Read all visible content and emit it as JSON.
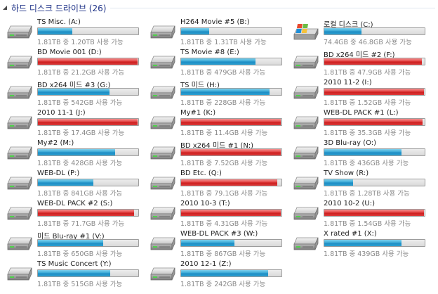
{
  "section": {
    "title": "하드 디스크 드라이브 (26)"
  },
  "drives": [
    {
      "name": "TS Misc. (A:)",
      "space": "1.81TB 중 1.20TB 사용 가능",
      "used": 0.34,
      "status": "normal",
      "icon": "hard-drive-icon"
    },
    {
      "name": "H264 Movie #5 (B:)",
      "space": "1.81TB 중 1.31TB 사용 가능",
      "used": 0.28,
      "status": "normal",
      "icon": "hard-drive-icon"
    },
    {
      "name": "로컬 디스크 (C:)",
      "space": "74.4GB 중 46.8GB 사용 가능",
      "used": 0.37,
      "status": "normal",
      "icon": "windows-drive-icon"
    },
    {
      "name": "BD Movie 001 (D:)",
      "space": "1.81TB 중 21.2GB 사용 가능",
      "used": 0.99,
      "status": "full",
      "icon": "hard-drive-icon"
    },
    {
      "name": "TS Movie #8 (E:)",
      "space": "1.81TB 중 479GB 사용 가능",
      "used": 0.74,
      "status": "normal",
      "icon": "hard-drive-icon"
    },
    {
      "name": "BD x264 미드 #2 (F:)",
      "space": "1.81TB 중 47.9GB 사용 가능",
      "used": 0.97,
      "status": "full",
      "icon": "hard-drive-icon"
    },
    {
      "name": "BD x264 미드 #3 (G:)",
      "space": "1.81TB 중 542GB 사용 가능",
      "used": 0.71,
      "status": "normal",
      "icon": "hard-drive-icon"
    },
    {
      "name": "TS 미드 (H:)",
      "space": "1.81TB 중 228GB 사용 가능",
      "used": 0.88,
      "status": "normal",
      "icon": "hard-drive-icon"
    },
    {
      "name": "2010 11-2 (I:)",
      "space": "1.81TB 중 1.52GB 사용 가능",
      "used": 0.99,
      "status": "full",
      "icon": "hard-drive-icon"
    },
    {
      "name": "2010 11-1 (J:)",
      "space": "1.81TB 중 17.4GB 사용 가능",
      "used": 0.99,
      "status": "full",
      "icon": "hard-drive-icon"
    },
    {
      "name": "My#1 (K:)",
      "space": "1.81TB 중 11.4GB 사용 가능",
      "used": 0.99,
      "status": "full",
      "icon": "hard-drive-icon"
    },
    {
      "name": "WEB-DL PACK #1 (L:)",
      "space": "1.81TB 중 35.3GB 사용 가능",
      "used": 0.98,
      "status": "full",
      "icon": "hard-drive-icon"
    },
    {
      "name": "My#2 (M:)",
      "space": "1.81TB 중 428GB 사용 가능",
      "used": 0.77,
      "status": "normal",
      "icon": "hard-drive-icon"
    },
    {
      "name": "BD x264 미드 #1 (N:)",
      "space": "1.81TB 중 7.52GB 사용 가능",
      "used": 0.99,
      "status": "full",
      "icon": "hard-drive-icon"
    },
    {
      "name": "3D Blu-ray (O:)",
      "space": "1.81TB 중 436GB 사용 가능",
      "used": 0.77,
      "status": "normal",
      "icon": "hard-drive-icon"
    },
    {
      "name": "WEB-DL (P:)",
      "space": "1.81TB 중 841GB 사용 가능",
      "used": 0.55,
      "status": "normal",
      "icon": "hard-drive-icon"
    },
    {
      "name": "BD Etc. (Q:)",
      "space": "1.81TB 중 79.1GB 사용 가능",
      "used": 0.96,
      "status": "full",
      "icon": "hard-drive-icon"
    },
    {
      "name": "TV Show (R:)",
      "space": "1.81TB 중 1.28TB 사용 가능",
      "used": 0.29,
      "status": "normal",
      "icon": "hard-drive-icon"
    },
    {
      "name": "WEB-DL PACK #2 (S:)",
      "space": "1.81TB 중 71.7GB 사용 가능",
      "used": 0.96,
      "status": "full",
      "icon": "hard-drive-icon"
    },
    {
      "name": "2010 10-3 (T:)",
      "space": "1.81TB 중 4.31GB 사용 가능",
      "used": 0.99,
      "status": "full",
      "icon": "hard-drive-icon"
    },
    {
      "name": "2010 10-2 (U:)",
      "space": "1.81TB 중 1.54GB 사용 가능",
      "used": 0.99,
      "status": "full",
      "icon": "hard-drive-icon"
    },
    {
      "name": "미드 Blu-ray #1 (V:)",
      "space": "1.81TB 중 650GB 사용 가능",
      "used": 0.65,
      "status": "normal",
      "icon": "hard-drive-icon"
    },
    {
      "name": "WEB-DL PACK #3 (W:)",
      "space": "1.81TB 중 867GB 사용 가능",
      "used": 0.53,
      "status": "normal",
      "icon": "hard-drive-icon"
    },
    {
      "name": "X rated #1 (X:)",
      "space": "1.81TB 중 439GB 사용 가능",
      "used": 0.77,
      "status": "normal",
      "icon": "hard-drive-icon"
    },
    {
      "name": "TS Music Concert (Y:)",
      "space": "1.81TB 중 515GB 사용 가능",
      "used": 0.72,
      "status": "normal",
      "icon": "hard-drive-icon"
    },
    {
      "name": "2010 12-1 (Z:)",
      "space": "1.81TB 중 242GB 사용 가능",
      "used": 0.87,
      "status": "normal",
      "icon": "hard-drive-icon"
    }
  ]
}
